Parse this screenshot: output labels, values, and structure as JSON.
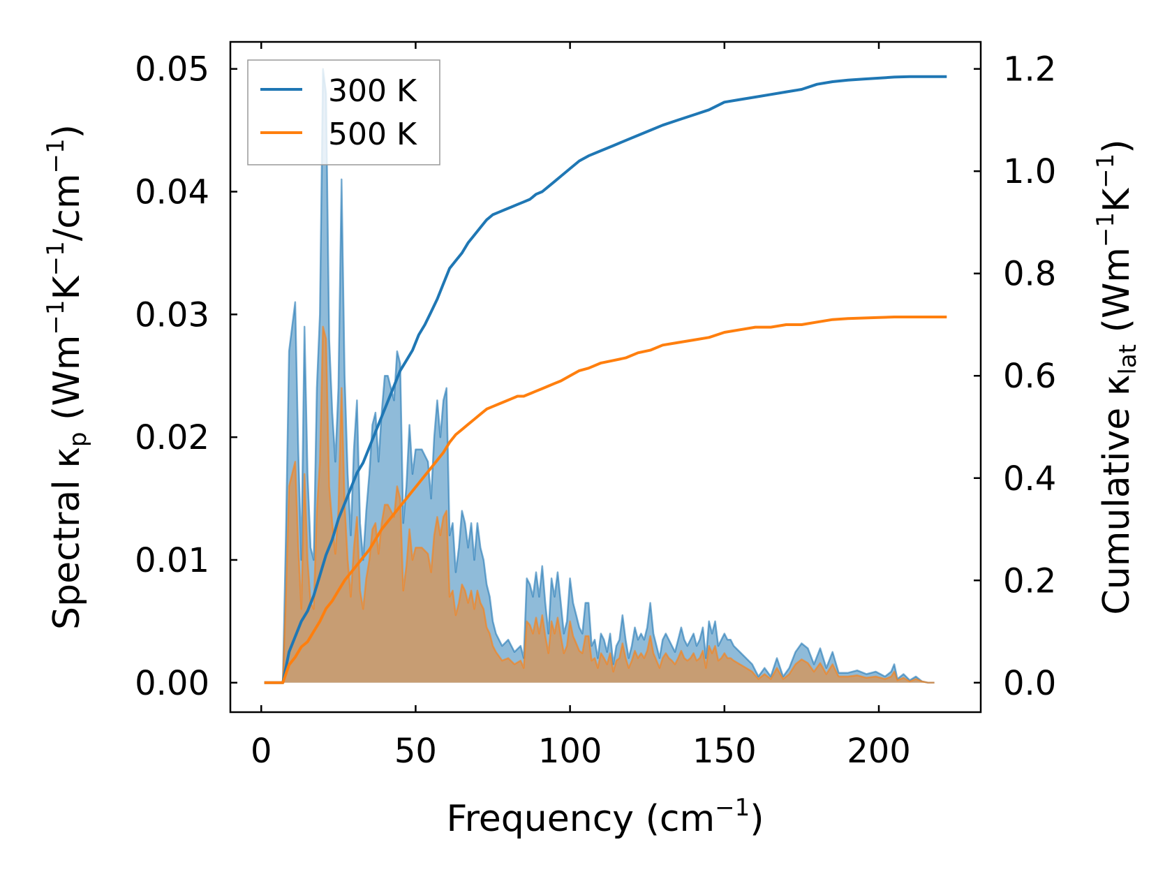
{
  "chart_data": {
    "type": "line",
    "title": "",
    "xlabel": "Frequency (cm",
    "xlabel_sup": "−1",
    "xlabel_end": ")",
    "ylabel_left": {
      "prefix": "Spectral κ",
      "sub": "p",
      "unit_a": " (Wm",
      "sup_a": "−1",
      "unit_b": "K",
      "sup_b": "−1",
      "unit_c": "/cm",
      "sup_c": "−1",
      "unit_d": ")"
    },
    "ylabel_right": {
      "prefix": "Cumulative κ",
      "sub": "lat",
      "unit_a": " (Wm",
      "sup_a": "−1",
      "unit_b": "K",
      "sup_b": "−1",
      "unit_c": ")"
    },
    "xlim": [
      -10,
      233
    ],
    "ylim_left": [
      -0.0024,
      0.0522
    ],
    "ylim_right": [
      -0.0576,
      1.2528
    ],
    "x_ticks": [
      0,
      50,
      100,
      150,
      200
    ],
    "x_tick_labels": [
      "0",
      "50",
      "100",
      "150",
      "200"
    ],
    "y_left_ticks": [
      0.0,
      0.01,
      0.02,
      0.03,
      0.04,
      0.05
    ],
    "y_left_tick_labels": [
      "0.00",
      "0.01",
      "0.02",
      "0.03",
      "0.04",
      "0.05"
    ],
    "y_right_ticks": [
      0.0,
      0.2,
      0.4,
      0.6,
      0.8,
      1.0,
      1.2
    ],
    "y_right_tick_labels": [
      "0.0",
      "0.2",
      "0.4",
      "0.6",
      "0.8",
      "1.0",
      "1.2"
    ],
    "legend": {
      "position": "upper-left",
      "entries": [
        {
          "label": "300 K",
          "color": "#1f77b4"
        },
        {
          "label": "500 K",
          "color": "#ff7f0e"
        }
      ]
    },
    "colors": {
      "c300": "#1f77b4",
      "c500": "#ff7f0e"
    },
    "spectral_x": [
      1,
      7,
      8,
      9,
      10,
      11,
      12,
      13,
      14,
      15,
      16,
      17,
      18,
      19,
      20,
      21,
      22,
      23,
      24,
      25,
      26,
      27,
      28,
      29,
      30,
      31,
      32,
      33,
      34,
      35,
      36,
      37,
      38,
      39,
      40,
      41,
      42,
      43,
      44,
      45,
      46,
      47,
      48,
      49,
      50,
      52,
      54,
      55,
      56,
      57,
      58,
      59,
      60,
      61,
      62,
      63,
      64,
      65,
      66,
      67,
      68,
      69,
      70,
      71,
      72,
      73,
      74,
      75,
      76,
      78,
      80,
      82,
      84,
      85,
      86,
      87,
      88,
      89,
      90,
      91,
      92,
      93,
      94,
      95,
      96,
      97,
      98,
      99,
      100,
      101,
      102,
      103,
      104,
      105,
      106,
      107,
      108,
      109,
      110,
      111,
      112,
      113,
      114,
      115,
      116,
      117,
      118,
      119,
      120,
      121,
      122,
      123,
      124,
      125,
      126,
      127,
      128,
      129,
      130,
      131,
      132,
      133,
      134,
      135,
      136,
      137,
      138,
      139,
      140,
      141,
      142,
      143,
      144,
      145,
      146,
      147,
      148,
      149,
      150,
      151,
      152,
      153,
      155,
      157,
      159,
      161,
      163,
      165,
      167,
      169,
      171,
      173,
      175,
      177,
      179,
      181,
      183,
      185,
      187,
      190,
      193,
      196,
      199,
      202,
      204,
      205,
      206,
      208,
      210,
      212,
      214,
      216,
      218,
      220,
      222
    ],
    "spectral_300": [
      0,
      0,
      0.012,
      0.027,
      0.029,
      0.031,
      0.019,
      0.01,
      0.029,
      0.017,
      0.011,
      0.01,
      0.024,
      0.03,
      0.05,
      0.048,
      0.028,
      0.022,
      0.018,
      0.024,
      0.041,
      0.025,
      0.017,
      0.012,
      0.019,
      0.023,
      0.013,
      0.01,
      0.014,
      0.017,
      0.021,
      0.022,
      0.018,
      0.022,
      0.025,
      0.025,
      0.024,
      0.023,
      0.027,
      0.026,
      0.013,
      0.016,
      0.021,
      0.017,
      0.019,
      0.019,
      0.018,
      0.015,
      0.02,
      0.023,
      0.02,
      0.023,
      0.024,
      0.012,
      0.013,
      0.009,
      0.011,
      0.014,
      0.013,
      0.011,
      0.013,
      0.01,
      0.013,
      0.011,
      0.01,
      0.008,
      0.007,
      0.005,
      0.004,
      0.003,
      0.0035,
      0.0025,
      0.003,
      0.002,
      0.0085,
      0.008,
      0.007,
      0.009,
      0.007,
      0.0095,
      0.0065,
      0.004,
      0.0085,
      0.007,
      0.009,
      0.0065,
      0.004,
      0.005,
      0.0085,
      0.0065,
      0.0055,
      0.0045,
      0.004,
      0.0065,
      0.0065,
      0.003,
      0.0035,
      0.002,
      0.004,
      0.0035,
      0.0025,
      0.004,
      0.0015,
      0.003,
      0.0035,
      0.0055,
      0.0035,
      0.002,
      0.003,
      0.0045,
      0.0035,
      0.004,
      0.0035,
      0.0045,
      0.0065,
      0.004,
      0.003,
      0.002,
      0.0035,
      0.004,
      0.0035,
      0.003,
      0.0025,
      0.0035,
      0.0045,
      0.0035,
      0.003,
      0.0035,
      0.004,
      0.003,
      0.0035,
      0.0045,
      0.002,
      0.005,
      0.004,
      0.005,
      0.003,
      0.0035,
      0.004,
      0.0035,
      0.0035,
      0.003,
      0.0025,
      0.002,
      0.0015,
      0.0005,
      0.0012,
      0.0005,
      0.002,
      0.0005,
      0.0012,
      0.0025,
      0.0032,
      0.0028,
      0.0015,
      0.0028,
      0.0012,
      0.0025,
      0.0008,
      0.0008,
      0.001,
      0.0007,
      0.0009,
      0.0005,
      0.0009,
      0.0015,
      0.0003,
      0.0007,
      0.0002,
      0.0005,
      0.0001,
      0,
      0
    ],
    "spectral_500": [
      0,
      0,
      0.007,
      0.016,
      0.017,
      0.018,
      0.011,
      0.006,
      0.017,
      0.01,
      0.0065,
      0.006,
      0.014,
      0.018,
      0.029,
      0.028,
      0.016,
      0.013,
      0.0105,
      0.014,
      0.024,
      0.0145,
      0.01,
      0.007,
      0.011,
      0.0135,
      0.0075,
      0.006,
      0.0085,
      0.01,
      0.0125,
      0.013,
      0.0105,
      0.013,
      0.0145,
      0.0145,
      0.014,
      0.0135,
      0.016,
      0.015,
      0.0075,
      0.0095,
      0.0125,
      0.01,
      0.011,
      0.011,
      0.0105,
      0.009,
      0.012,
      0.0135,
      0.012,
      0.0135,
      0.014,
      0.007,
      0.0075,
      0.0055,
      0.0065,
      0.008,
      0.0075,
      0.0065,
      0.0075,
      0.006,
      0.0075,
      0.0065,
      0.006,
      0.0045,
      0.004,
      0.003,
      0.0025,
      0.0018,
      0.002,
      0.0015,
      0.0018,
      0.0012,
      0.005,
      0.0047,
      0.004,
      0.0053,
      0.004,
      0.0055,
      0.0038,
      0.0024,
      0.005,
      0.004,
      0.0053,
      0.0038,
      0.0024,
      0.003,
      0.005,
      0.0038,
      0.0032,
      0.0026,
      0.0024,
      0.0038,
      0.0038,
      0.0018,
      0.002,
      0.0012,
      0.0024,
      0.002,
      0.0015,
      0.0024,
      0.0009,
      0.0018,
      0.002,
      0.0032,
      0.002,
      0.0012,
      0.0018,
      0.0026,
      0.002,
      0.0024,
      0.002,
      0.0026,
      0.0038,
      0.0024,
      0.0018,
      0.0012,
      0.002,
      0.0024,
      0.002,
      0.0018,
      0.0015,
      0.002,
      0.0026,
      0.002,
      0.0018,
      0.002,
      0.0024,
      0.0018,
      0.002,
      0.0026,
      0.0012,
      0.003,
      0.0024,
      0.003,
      0.0018,
      0.002,
      0.0024,
      0.002,
      0.002,
      0.0018,
      0.0015,
      0.0012,
      0.0009,
      0.0003,
      0.0007,
      0.0003,
      0.0012,
      0.0003,
      0.0007,
      0.0015,
      0.0019,
      0.0016,
      0.0009,
      0.0016,
      0.0007,
      0.0015,
      0.0005,
      0.0005,
      0.0006,
      0.0004,
      0.0005,
      0.0003,
      0.0005,
      0.0009,
      0.0002,
      0.0004,
      0.0001,
      0.0003,
      0.0001,
      0,
      0
    ],
    "cumulative_x": [
      1,
      7,
      9,
      11,
      13,
      15,
      17,
      19,
      21,
      23,
      25,
      27,
      29,
      31,
      33,
      35,
      37,
      39,
      41,
      43,
      45,
      47,
      49,
      51,
      53,
      55,
      57,
      59,
      61,
      63,
      65,
      67,
      69,
      71,
      73,
      75,
      77,
      79,
      81,
      83,
      85,
      87,
      89,
      91,
      93,
      95,
      97,
      100,
      103,
      106,
      110,
      114,
      118,
      122,
      126,
      130,
      135,
      140,
      145,
      150,
      155,
      160,
      165,
      170,
      175,
      180,
      185,
      190,
      195,
      200,
      205,
      210,
      215,
      220,
      222
    ],
    "cumulative_300": [
      0,
      0,
      0.06,
      0.09,
      0.12,
      0.14,
      0.17,
      0.21,
      0.25,
      0.28,
      0.32,
      0.35,
      0.38,
      0.41,
      0.43,
      0.46,
      0.49,
      0.52,
      0.55,
      0.58,
      0.61,
      0.63,
      0.65,
      0.68,
      0.7,
      0.725,
      0.75,
      0.78,
      0.81,
      0.825,
      0.84,
      0.86,
      0.875,
      0.89,
      0.905,
      0.915,
      0.92,
      0.925,
      0.93,
      0.935,
      0.94,
      0.945,
      0.955,
      0.96,
      0.97,
      0.98,
      0.99,
      1.005,
      1.02,
      1.03,
      1.04,
      1.05,
      1.06,
      1.07,
      1.08,
      1.09,
      1.1,
      1.11,
      1.12,
      1.135,
      1.14,
      1.145,
      1.15,
      1.155,
      1.16,
      1.17,
      1.175,
      1.178,
      1.18,
      1.182,
      1.184,
      1.185,
      1.185,
      1.185,
      1.185
    ],
    "cumulative_500": [
      0,
      0,
      0.035,
      0.05,
      0.07,
      0.08,
      0.1,
      0.12,
      0.145,
      0.16,
      0.18,
      0.2,
      0.215,
      0.23,
      0.245,
      0.26,
      0.28,
      0.3,
      0.315,
      0.33,
      0.345,
      0.36,
      0.375,
      0.39,
      0.405,
      0.42,
      0.435,
      0.45,
      0.47,
      0.485,
      0.495,
      0.505,
      0.515,
      0.525,
      0.535,
      0.54,
      0.545,
      0.55,
      0.555,
      0.56,
      0.56,
      0.565,
      0.57,
      0.575,
      0.58,
      0.585,
      0.59,
      0.6,
      0.61,
      0.615,
      0.625,
      0.63,
      0.635,
      0.645,
      0.65,
      0.66,
      0.665,
      0.67,
      0.675,
      0.685,
      0.69,
      0.695,
      0.695,
      0.7,
      0.7,
      0.705,
      0.71,
      0.712,
      0.713,
      0.714,
      0.715,
      0.715,
      0.715,
      0.715,
      0.715
    ]
  }
}
